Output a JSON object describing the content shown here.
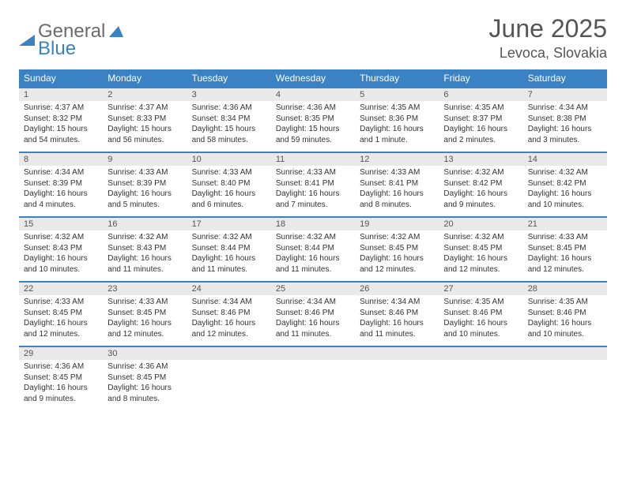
{
  "logo": {
    "word1": "General",
    "word2": "Blue"
  },
  "title": "June 2025",
  "location": "Levoca, Slovakia",
  "colors": {
    "header_bg": "#3b82c4",
    "header_text": "#ffffff",
    "daynum_bg": "#e9e9e9",
    "rule": "#3b82c4",
    "body_text": "#333333",
    "title_text": "#555555"
  },
  "fonts": {
    "title_size": 32,
    "location_size": 18,
    "header_size": 12,
    "daynum_size": 11,
    "cell_size": 10
  },
  "weekdays": [
    "Sunday",
    "Monday",
    "Tuesday",
    "Wednesday",
    "Thursday",
    "Friday",
    "Saturday"
  ],
  "weeks": [
    [
      {
        "n": "1",
        "sr": "Sunrise: 4:37 AM",
        "ss": "Sunset: 8:32 PM",
        "dl": "Daylight: 15 hours and 54 minutes."
      },
      {
        "n": "2",
        "sr": "Sunrise: 4:37 AM",
        "ss": "Sunset: 8:33 PM",
        "dl": "Daylight: 15 hours and 56 minutes."
      },
      {
        "n": "3",
        "sr": "Sunrise: 4:36 AM",
        "ss": "Sunset: 8:34 PM",
        "dl": "Daylight: 15 hours and 58 minutes."
      },
      {
        "n": "4",
        "sr": "Sunrise: 4:36 AM",
        "ss": "Sunset: 8:35 PM",
        "dl": "Daylight: 15 hours and 59 minutes."
      },
      {
        "n": "5",
        "sr": "Sunrise: 4:35 AM",
        "ss": "Sunset: 8:36 PM",
        "dl": "Daylight: 16 hours and 1 minute."
      },
      {
        "n": "6",
        "sr": "Sunrise: 4:35 AM",
        "ss": "Sunset: 8:37 PM",
        "dl": "Daylight: 16 hours and 2 minutes."
      },
      {
        "n": "7",
        "sr": "Sunrise: 4:34 AM",
        "ss": "Sunset: 8:38 PM",
        "dl": "Daylight: 16 hours and 3 minutes."
      }
    ],
    [
      {
        "n": "8",
        "sr": "Sunrise: 4:34 AM",
        "ss": "Sunset: 8:39 PM",
        "dl": "Daylight: 16 hours and 4 minutes."
      },
      {
        "n": "9",
        "sr": "Sunrise: 4:33 AM",
        "ss": "Sunset: 8:39 PM",
        "dl": "Daylight: 16 hours and 5 minutes."
      },
      {
        "n": "10",
        "sr": "Sunrise: 4:33 AM",
        "ss": "Sunset: 8:40 PM",
        "dl": "Daylight: 16 hours and 6 minutes."
      },
      {
        "n": "11",
        "sr": "Sunrise: 4:33 AM",
        "ss": "Sunset: 8:41 PM",
        "dl": "Daylight: 16 hours and 7 minutes."
      },
      {
        "n": "12",
        "sr": "Sunrise: 4:33 AM",
        "ss": "Sunset: 8:41 PM",
        "dl": "Daylight: 16 hours and 8 minutes."
      },
      {
        "n": "13",
        "sr": "Sunrise: 4:32 AM",
        "ss": "Sunset: 8:42 PM",
        "dl": "Daylight: 16 hours and 9 minutes."
      },
      {
        "n": "14",
        "sr": "Sunrise: 4:32 AM",
        "ss": "Sunset: 8:42 PM",
        "dl": "Daylight: 16 hours and 10 minutes."
      }
    ],
    [
      {
        "n": "15",
        "sr": "Sunrise: 4:32 AM",
        "ss": "Sunset: 8:43 PM",
        "dl": "Daylight: 16 hours and 10 minutes."
      },
      {
        "n": "16",
        "sr": "Sunrise: 4:32 AM",
        "ss": "Sunset: 8:43 PM",
        "dl": "Daylight: 16 hours and 11 minutes."
      },
      {
        "n": "17",
        "sr": "Sunrise: 4:32 AM",
        "ss": "Sunset: 8:44 PM",
        "dl": "Daylight: 16 hours and 11 minutes."
      },
      {
        "n": "18",
        "sr": "Sunrise: 4:32 AM",
        "ss": "Sunset: 8:44 PM",
        "dl": "Daylight: 16 hours and 11 minutes."
      },
      {
        "n": "19",
        "sr": "Sunrise: 4:32 AM",
        "ss": "Sunset: 8:45 PM",
        "dl": "Daylight: 16 hours and 12 minutes."
      },
      {
        "n": "20",
        "sr": "Sunrise: 4:32 AM",
        "ss": "Sunset: 8:45 PM",
        "dl": "Daylight: 16 hours and 12 minutes."
      },
      {
        "n": "21",
        "sr": "Sunrise: 4:33 AM",
        "ss": "Sunset: 8:45 PM",
        "dl": "Daylight: 16 hours and 12 minutes."
      }
    ],
    [
      {
        "n": "22",
        "sr": "Sunrise: 4:33 AM",
        "ss": "Sunset: 8:45 PM",
        "dl": "Daylight: 16 hours and 12 minutes."
      },
      {
        "n": "23",
        "sr": "Sunrise: 4:33 AM",
        "ss": "Sunset: 8:45 PM",
        "dl": "Daylight: 16 hours and 12 minutes."
      },
      {
        "n": "24",
        "sr": "Sunrise: 4:34 AM",
        "ss": "Sunset: 8:46 PM",
        "dl": "Daylight: 16 hours and 12 minutes."
      },
      {
        "n": "25",
        "sr": "Sunrise: 4:34 AM",
        "ss": "Sunset: 8:46 PM",
        "dl": "Daylight: 16 hours and 11 minutes."
      },
      {
        "n": "26",
        "sr": "Sunrise: 4:34 AM",
        "ss": "Sunset: 8:46 PM",
        "dl": "Daylight: 16 hours and 11 minutes."
      },
      {
        "n": "27",
        "sr": "Sunrise: 4:35 AM",
        "ss": "Sunset: 8:46 PM",
        "dl": "Daylight: 16 hours and 10 minutes."
      },
      {
        "n": "28",
        "sr": "Sunrise: 4:35 AM",
        "ss": "Sunset: 8:46 PM",
        "dl": "Daylight: 16 hours and 10 minutes."
      }
    ],
    [
      {
        "n": "29",
        "sr": "Sunrise: 4:36 AM",
        "ss": "Sunset: 8:45 PM",
        "dl": "Daylight: 16 hours and 9 minutes."
      },
      {
        "n": "30",
        "sr": "Sunrise: 4:36 AM",
        "ss": "Sunset: 8:45 PM",
        "dl": "Daylight: 16 hours and 8 minutes."
      },
      null,
      null,
      null,
      null,
      null
    ]
  ]
}
